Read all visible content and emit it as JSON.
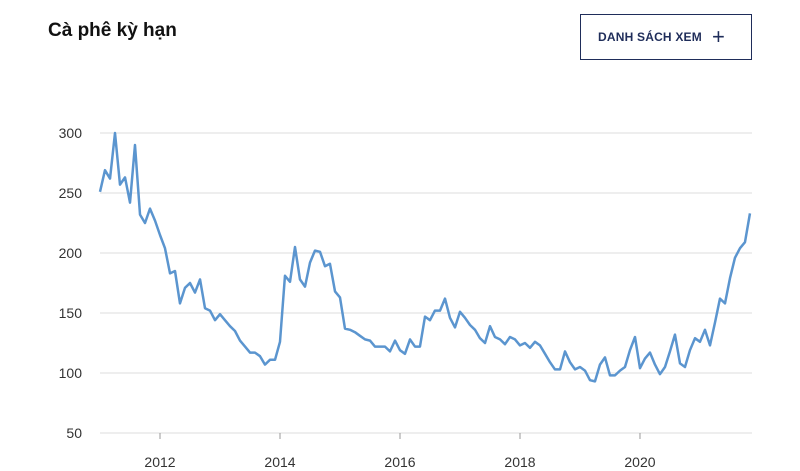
{
  "title": "Cà phê kỳ hạn",
  "button": "DANH SÁCH XEM",
  "chart_data": {
    "type": "line",
    "color": "#5b95cf",
    "grid": true,
    "x": [
      2011,
      2011.083,
      2011.167,
      2011.25,
      2011.333,
      2011.417,
      2011.5,
      2011.583,
      2011.667,
      2011.75,
      2011.833,
      2011.917,
      2012,
      2012.083,
      2012.167,
      2012.25,
      2012.333,
      2012.417,
      2012.5,
      2012.583,
      2012.667,
      2012.75,
      2012.833,
      2012.917,
      2013,
      2013.083,
      2013.167,
      2013.25,
      2013.333,
      2013.417,
      2013.5,
      2013.583,
      2013.667,
      2013.75,
      2013.833,
      2013.917,
      2014,
      2014.083,
      2014.167,
      2014.25,
      2014.333,
      2014.417,
      2014.5,
      2014.583,
      2014.667,
      2014.75,
      2014.833,
      2014.917,
      2015,
      2015.083,
      2015.167,
      2015.25,
      2015.333,
      2015.417,
      2015.5,
      2015.583,
      2015.667,
      2015.75,
      2015.833,
      2015.917,
      2016,
      2016.083,
      2016.167,
      2016.25,
      2016.333,
      2016.417,
      2016.5,
      2016.583,
      2016.667,
      2016.75,
      2016.833,
      2016.917,
      2017,
      2017.083,
      2017.167,
      2017.25,
      2017.333,
      2017.417,
      2017.5,
      2017.583,
      2017.667,
      2017.75,
      2017.833,
      2017.917,
      2018,
      2018.083,
      2018.167,
      2018.25,
      2018.333,
      2018.417,
      2018.5,
      2018.583,
      2018.667,
      2018.75,
      2018.833,
      2018.917,
      2019,
      2019.083,
      2019.167,
      2019.25,
      2019.333,
      2019.417,
      2019.5,
      2019.583,
      2019.667,
      2019.75,
      2019.833,
      2019.917,
      2020,
      2020.083,
      2020.167,
      2020.25,
      2020.333,
      2020.417,
      2020.5,
      2020.583,
      2020.667,
      2020.75,
      2020.833,
      2020.917,
      2021,
      2021.083,
      2021.167,
      2021.25,
      2021.333,
      2021.417,
      2021.5,
      2021.583,
      2021.667,
      2021.75,
      2021.833
    ],
    "values": [
      251,
      269,
      262,
      300,
      257,
      263,
      242,
      290,
      232,
      225,
      237,
      227,
      215,
      204,
      183,
      185,
      158,
      171,
      175,
      167,
      178,
      154,
      152,
      144,
      149,
      144,
      139,
      135,
      127,
      122,
      117,
      117,
      114,
      107,
      111,
      111,
      126,
      181,
      176,
      205,
      178,
      172,
      192,
      202,
      201,
      189,
      191,
      168,
      163,
      137,
      136,
      134,
      131,
      128,
      127,
      122,
      122,
      122,
      118,
      127,
      119,
      116,
      128,
      122,
      122,
      147,
      144,
      152,
      152,
      162,
      146,
      138,
      151,
      146,
      140,
      136,
      129,
      125,
      139,
      130,
      128,
      124,
      130,
      128,
      123,
      125,
      121,
      126,
      123,
      116,
      109,
      103,
      103,
      118,
      109,
      103,
      105,
      102,
      94,
      93,
      107,
      113,
      98,
      98,
      102,
      105,
      119,
      130,
      104,
      112,
      117,
      107,
      99,
      105,
      118,
      132,
      108,
      105,
      119,
      129,
      126,
      136,
      123,
      142,
      162,
      158,
      179,
      196,
      204,
      209,
      233
    ],
    "xlim": [
      2011,
      2021.867
    ],
    "xticks": [
      2012,
      2014,
      2016,
      2018,
      2020
    ],
    "ylim": [
      50,
      300
    ],
    "yticks": [
      50,
      100,
      150,
      200,
      250,
      300
    ]
  }
}
